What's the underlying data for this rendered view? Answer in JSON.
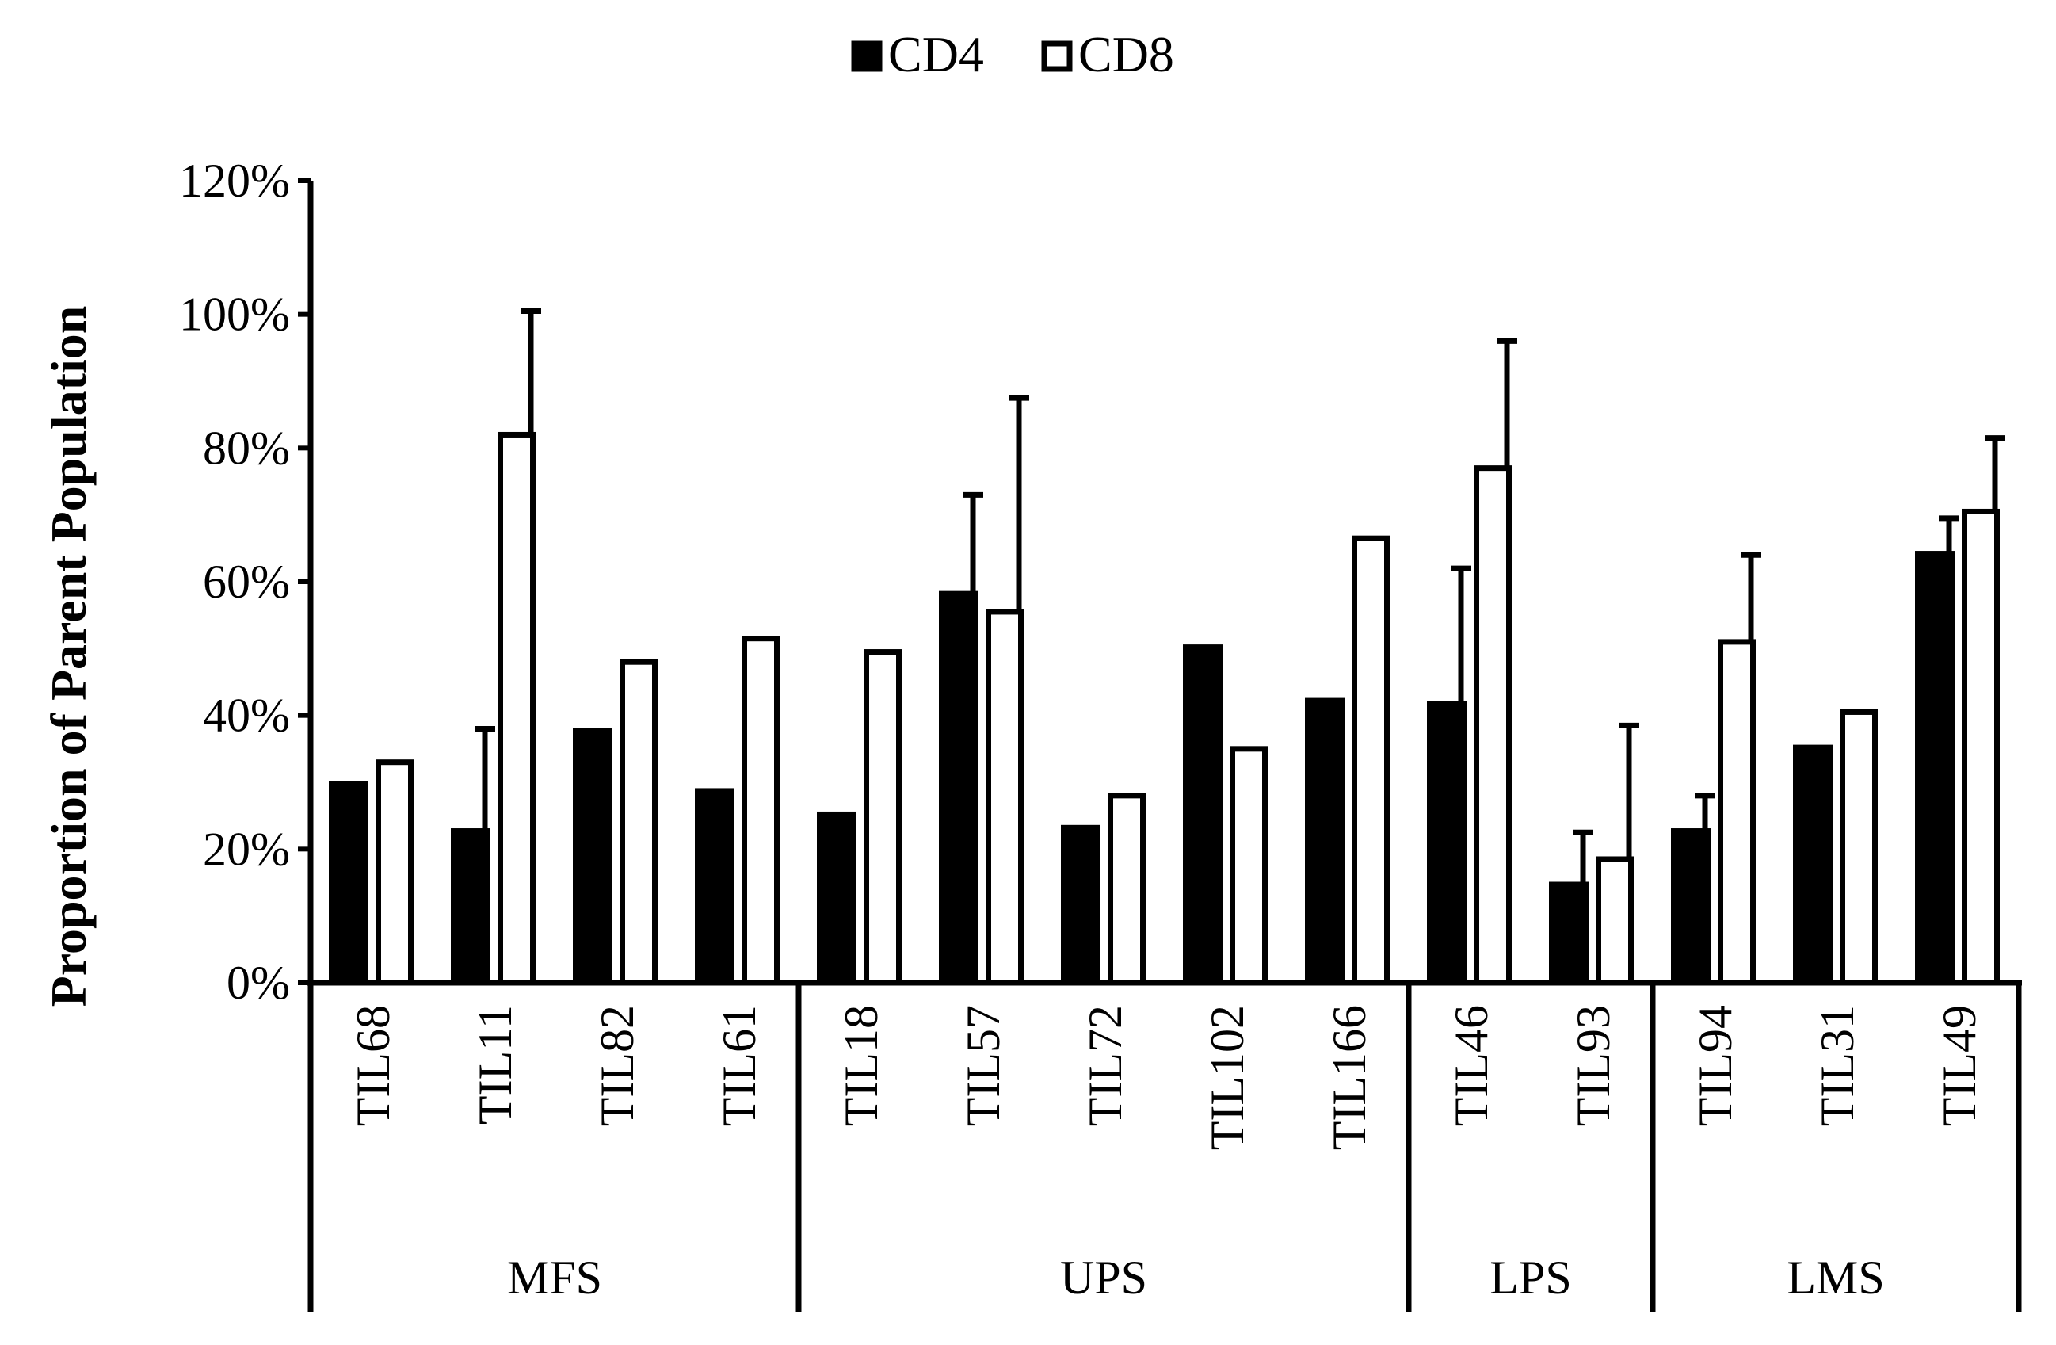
{
  "chart_data": {
    "type": "bar",
    "title": "",
    "xlabel": "",
    "ylabel": "Proportion of Parent Population",
    "ylim": [
      0,
      120
    ],
    "yticks": [
      0,
      20,
      40,
      60,
      80,
      100,
      120
    ],
    "ytick_labels": [
      "0%",
      "20%",
      "40%",
      "60%",
      "80%",
      "100%",
      "120%"
    ],
    "grid": false,
    "legend_position": "top-center",
    "categories": [
      "TIL68",
      "TIL11",
      "TIL82",
      "TIL61",
      "TIL18",
      "TIL57",
      "TIL72",
      "TIL102",
      "TIL166",
      "TIL46",
      "TIL93",
      "TIL94",
      "TIL31",
      "TIL49"
    ],
    "groups": [
      {
        "label": "MFS",
        "count": 4
      },
      {
        "label": "UPS",
        "count": 5
      },
      {
        "label": "LPS",
        "count": 2
      },
      {
        "label": "LMS",
        "count": 3
      }
    ],
    "series": [
      {
        "name": "CD4",
        "color": "#000000",
        "fill": "solid",
        "values": [
          30,
          23,
          38,
          29,
          25.5,
          58.5,
          23.5,
          50.5,
          42.5,
          42,
          15,
          23,
          35.5,
          64.5
        ],
        "error": [
          null,
          15,
          null,
          null,
          null,
          14.5,
          null,
          null,
          null,
          20,
          7.5,
          5,
          null,
          5
        ]
      },
      {
        "name": "CD8",
        "color": "#ffffff",
        "fill": "open",
        "values": [
          33,
          82,
          48,
          51.5,
          49.5,
          55.5,
          28,
          35,
          66.5,
          77,
          18.5,
          51,
          40.5,
          70.5
        ],
        "error": [
          null,
          18.5,
          null,
          null,
          null,
          32,
          null,
          null,
          null,
          19,
          20,
          13,
          null,
          11
        ]
      }
    ]
  }
}
